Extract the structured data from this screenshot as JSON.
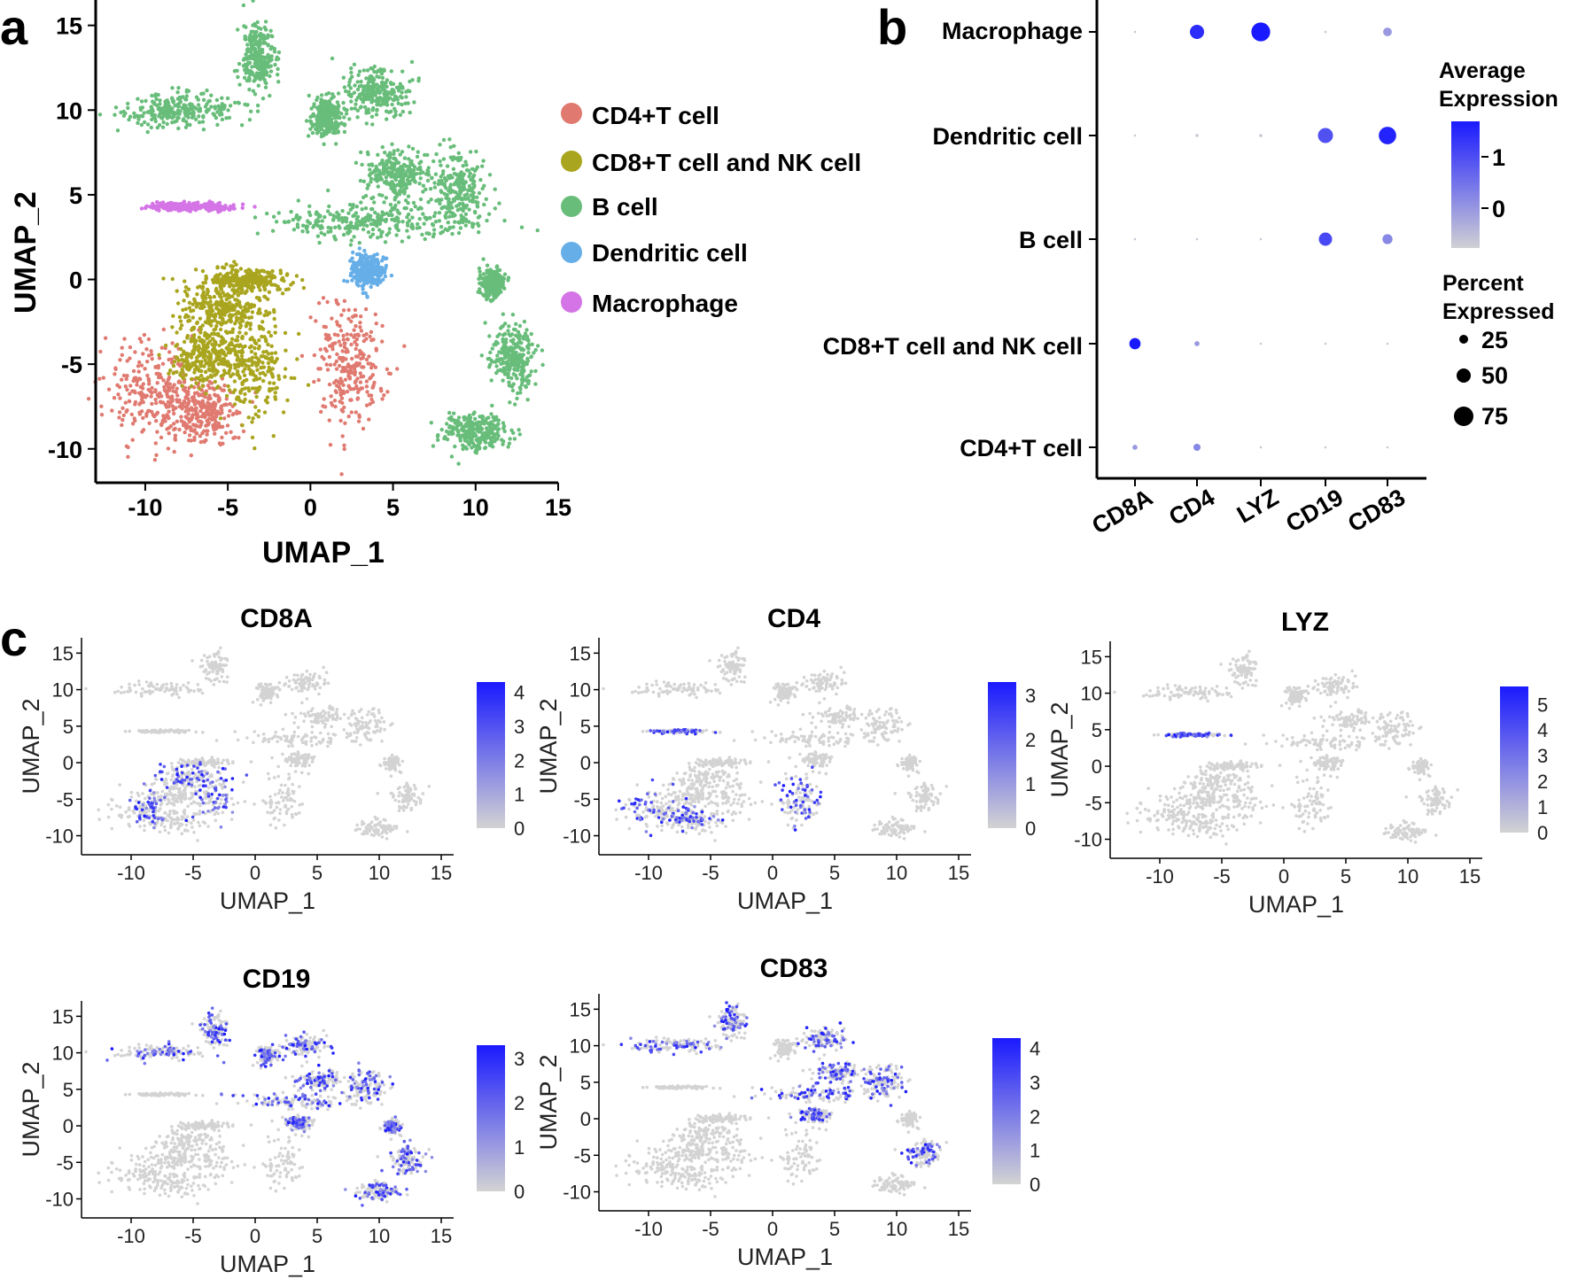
{
  "panel_letters": [
    "a",
    "b",
    "c"
  ],
  "chart_data": [
    {
      "panel": "a",
      "type": "scatter",
      "xlabel": "UMAP_1",
      "ylabel": "UMAP_2",
      "xlim": [
        -13,
        15
      ],
      "ylim": [
        -12,
        16.5
      ],
      "x_ticks": [
        -10,
        -5,
        0,
        5,
        10,
        15
      ],
      "y_ticks": [
        -10,
        -5,
        0,
        5,
        10,
        15
      ],
      "legend_placement": "right",
      "legend": [
        {
          "name": "CD4+T cell",
          "color": "#e07a70"
        },
        {
          "name": "CD8+T cell and NK cell",
          "color": "#a9a51e"
        },
        {
          "name": "B cell",
          "color": "#68bd7a"
        },
        {
          "name": "Dendritic cell",
          "color": "#66aee8"
        },
        {
          "name": "Macrophage",
          "color": "#d474e6"
        }
      ],
      "series": [
        {
          "name": "CD4+T cell",
          "color": "#e07a70",
          "regions": [
            [
              -9.5,
              -6.5,
              2.6,
              2.8
            ],
            [
              -6.5,
              -7.8,
              1.8,
              1.6
            ],
            [
              2.3,
              -5,
              1.8,
              3.5
            ]
          ]
        },
        {
          "name": "CD8+T cell and NK cell",
          "color": "#a9a51e",
          "regions": [
            [
              -5.5,
              -1.8,
              2.2,
              1.4
            ],
            [
              -3.6,
              -5,
              2.0,
              3.1
            ],
            [
              -6.5,
              -4.5,
              1.8,
              1.5
            ],
            [
              -4,
              0,
              2.2,
              0.6
            ]
          ]
        },
        {
          "name": "B cell",
          "color": "#68bd7a",
          "regions": [
            [
              -8,
              10,
              3.2,
              0.9
            ],
            [
              -3.2,
              13.2,
              1.0,
              2.0
            ],
            [
              1,
              9.6,
              0.8,
              1.0
            ],
            [
              4,
              11,
              1.7,
              1.3
            ],
            [
              5.2,
              6.2,
              1.7,
              1.4
            ],
            [
              3.4,
              3.4,
              4.6,
              0.9
            ],
            [
              9,
              5.2,
              1.5,
              2.2
            ],
            [
              11,
              -0.2,
              0.6,
              0.8
            ],
            [
              12.2,
              -4.5,
              1.2,
              1.8
            ],
            [
              10,
              -9,
              1.7,
              1.0
            ]
          ]
        },
        {
          "name": "Dendritic cell",
          "color": "#66aee8",
          "regions": [
            [
              3.4,
              0.5,
              1.0,
              0.9
            ]
          ]
        },
        {
          "name": "Macrophage",
          "color": "#d474e6",
          "regions": [
            [
              -7.3,
              4.3,
              2.2,
              0.22
            ]
          ]
        }
      ]
    },
    {
      "panel": "b",
      "type": "scatter",
      "subtype": "dot-plot",
      "categories_x": [
        "CD8A",
        "CD4",
        "LYZ",
        "CD19",
        "CD83"
      ],
      "categories_y": [
        "Macrophage",
        "Dendritic cell",
        "B cell",
        "CD8+T cell and NK cell",
        "CD4+T cell"
      ],
      "legend_placement": "right",
      "legend_color_title": [
        "Average",
        "Expression"
      ],
      "legend_color_ticks": [
        1,
        0
      ],
      "legend_color_range": [
        -0.5,
        1.5
      ],
      "legend_size_title": [
        "Percent",
        "Expressed"
      ],
      "legend_size_ticks": [
        25,
        50,
        75
      ],
      "colors": {
        "low": "#d0d0d4",
        "high": "#1a1aff"
      },
      "points": [
        {
          "cell": "Macrophage",
          "gene": "CD8A",
          "pct": 1,
          "avg": -0.4
        },
        {
          "cell": "Macrophage",
          "gene": "CD4",
          "pct": 40,
          "avg": 1.3
        },
        {
          "cell": "Macrophage",
          "gene": "LYZ",
          "pct": 70,
          "avg": 1.5
        },
        {
          "cell": "Macrophage",
          "gene": "CD19",
          "pct": 1,
          "avg": -0.4
        },
        {
          "cell": "Macrophage",
          "gene": "CD83",
          "pct": 15,
          "avg": 0.1
        },
        {
          "cell": "Dendritic cell",
          "gene": "CD8A",
          "pct": 1,
          "avg": -0.4
        },
        {
          "cell": "Dendritic cell",
          "gene": "CD4",
          "pct": 2,
          "avg": -0.4
        },
        {
          "cell": "Dendritic cell",
          "gene": "LYZ",
          "pct": 2,
          "avg": -0.4
        },
        {
          "cell": "Dendritic cell",
          "gene": "CD19",
          "pct": 45,
          "avg": 0.9
        },
        {
          "cell": "Dendritic cell",
          "gene": "CD83",
          "pct": 60,
          "avg": 1.4
        },
        {
          "cell": "B cell",
          "gene": "CD8A",
          "pct": 1,
          "avg": -0.4
        },
        {
          "cell": "B cell",
          "gene": "CD4",
          "pct": 1,
          "avg": -0.4
        },
        {
          "cell": "B cell",
          "gene": "LYZ",
          "pct": 1,
          "avg": -0.4
        },
        {
          "cell": "B cell",
          "gene": "CD19",
          "pct": 35,
          "avg": 1.0
        },
        {
          "cell": "B cell",
          "gene": "CD83",
          "pct": 20,
          "avg": 0.3
        },
        {
          "cell": "CD8+T cell and NK cell",
          "gene": "CD8A",
          "pct": 25,
          "avg": 1.5
        },
        {
          "cell": "CD8+T cell and NK cell",
          "gene": "CD4",
          "pct": 5,
          "avg": 0.1
        },
        {
          "cell": "CD8+T cell and NK cell",
          "gene": "LYZ",
          "pct": 1,
          "avg": -0.4
        },
        {
          "cell": "CD8+T cell and NK cell",
          "gene": "CD19",
          "pct": 1,
          "avg": -0.4
        },
        {
          "cell": "CD8+T cell and NK cell",
          "gene": "CD83",
          "pct": 1,
          "avg": -0.4
        },
        {
          "cell": "CD4+T cell",
          "gene": "CD8A",
          "pct": 5,
          "avg": 0.1
        },
        {
          "cell": "CD4+T cell",
          "gene": "CD4",
          "pct": 10,
          "avg": 0.3
        },
        {
          "cell": "CD4+T cell",
          "gene": "LYZ",
          "pct": 1,
          "avg": -0.4
        },
        {
          "cell": "CD4+T cell",
          "gene": "CD19",
          "pct": 1,
          "avg": -0.4
        },
        {
          "cell": "CD4+T cell",
          "gene": "CD83",
          "pct": 1,
          "avg": -0.4
        }
      ]
    },
    {
      "panel": "c",
      "type": "scatter",
      "subtype": "feature-plot",
      "xlabel": "UMAP_1",
      "ylabel": "UMAP_2",
      "xlim": [
        -14,
        16
      ],
      "ylim": [
        -12,
        16.5
      ],
      "x_ticks": [
        -10,
        -5,
        0,
        5,
        10,
        15
      ],
      "y_ticks": [
        -10,
        -5,
        0,
        5,
        10,
        15
      ],
      "colors": {
        "low": "#d3d3d3",
        "high": "#1a1aff"
      },
      "legend_placement": "right",
      "plots": [
        {
          "title": "CD8A",
          "scale_ticks": [
            4,
            3,
            2,
            1,
            0
          ],
          "scale_max": 4.3,
          "hot_regions": [
            [
              -5.5,
              -1.8,
              2.2,
              1.4
            ],
            [
              -3.6,
              -5,
              2.0,
              3.1
            ],
            [
              -8.5,
              -6.5,
              1.2,
              2.0
            ]
          ]
        },
        {
          "title": "CD4",
          "scale_ticks": [
            3,
            2,
            1,
            0
          ],
          "scale_max": 3.3,
          "hot_regions": [
            [
              -9.5,
              -6.5,
              2.6,
              2.8
            ],
            [
              -6.5,
              -7.8,
              1.8,
              1.6
            ],
            [
              2.3,
              -5,
              1.8,
              3.5
            ],
            [
              -7.3,
              4.3,
              2.2,
              0.22
            ]
          ]
        },
        {
          "title": "LYZ",
          "scale_ticks": [
            5,
            4,
            3,
            2,
            1,
            0
          ],
          "scale_max": 5.7,
          "hot_regions": [
            [
              -7.3,
              4.3,
              2.2,
              0.22
            ]
          ]
        },
        {
          "title": "CD19",
          "scale_ticks": [
            3,
            2,
            1,
            0
          ],
          "scale_max": 3.3,
          "hot_regions": [
            [
              -8,
              10,
              3.2,
              0.9
            ],
            [
              -3.2,
              13.2,
              1.0,
              2.0
            ],
            [
              1,
              9.6,
              0.8,
              1.0
            ],
            [
              4,
              11,
              1.7,
              1.3
            ],
            [
              5.2,
              6.2,
              1.7,
              1.4
            ],
            [
              3.4,
              3.4,
              4.6,
              0.9
            ],
            [
              9,
              5.2,
              1.5,
              2.2
            ],
            [
              11,
              -0.2,
              0.6,
              0.8
            ],
            [
              12.2,
              -4.5,
              1.2,
              1.8
            ],
            [
              10,
              -9,
              1.7,
              1.0
            ],
            [
              3.4,
              0.5,
              1.0,
              0.9
            ]
          ]
        },
        {
          "title": "CD83",
          "scale_ticks": [
            4,
            3,
            2,
            1,
            0
          ],
          "scale_max": 4.3,
          "hot_regions": [
            [
              -3.2,
              13.2,
              1.0,
              2.0
            ],
            [
              -8,
              10,
              3.2,
              0.9
            ],
            [
              4,
              11,
              1.7,
              1.3
            ],
            [
              5.2,
              6.2,
              1.7,
              1.4
            ],
            [
              9,
              5.2,
              1.5,
              2.2
            ],
            [
              3.4,
              0.5,
              1.0,
              0.9
            ],
            [
              12.2,
              -4.5,
              1.2,
              1.8
            ],
            [
              3.4,
              3.4,
              4.6,
              0.9
            ]
          ]
        }
      ]
    }
  ]
}
